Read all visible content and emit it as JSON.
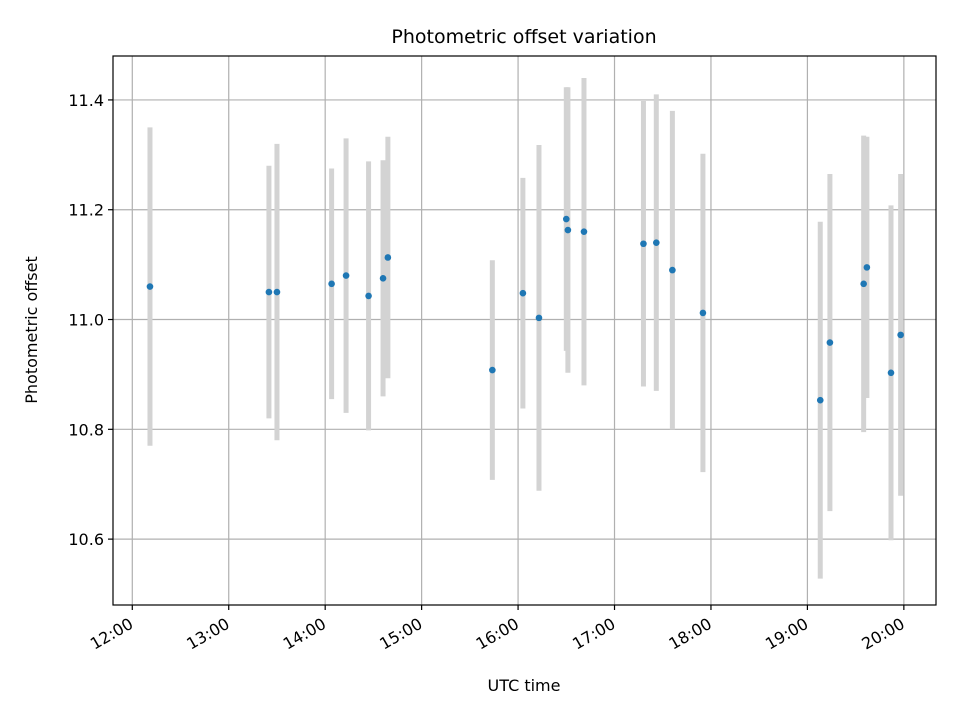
{
  "chart_data": {
    "type": "scatter",
    "title": "Photometric offset variation",
    "xlabel": "UTC time",
    "ylabel": "Photometric offset",
    "x_tick_labels": [
      "12:00",
      "13:00",
      "14:00",
      "15:00",
      "16:00",
      "17:00",
      "18:00",
      "19:00",
      "20:00"
    ],
    "y_tick_labels": [
      "10.6",
      "10.8",
      "11.0",
      "11.2",
      "11.4"
    ],
    "y_ticks": [
      10.6,
      10.8,
      11.0,
      11.2,
      11.4
    ],
    "xlim": [
      "11:48",
      "20:20"
    ],
    "ylim": [
      10.48,
      11.48
    ],
    "grid": true,
    "colors": {
      "point": "#1f77b4",
      "errorbar": "#d3d3d3",
      "grid": "#b0b0b0"
    },
    "points": [
      {
        "x": "12:11",
        "y": 11.06,
        "err": 0.29
      },
      {
        "x": "13:25",
        "y": 11.05,
        "err": 0.23
      },
      {
        "x": "13:30",
        "y": 11.05,
        "err": 0.27
      },
      {
        "x": "14:04",
        "y": 11.065,
        "err": 0.21
      },
      {
        "x": "14:13",
        "y": 11.08,
        "err": 0.25
      },
      {
        "x": "14:27",
        "y": 11.043,
        "err": 0.245
      },
      {
        "x": "14:36",
        "y": 11.075,
        "err": 0.215
      },
      {
        "x": "14:39",
        "y": 11.113,
        "err": 0.22
      },
      {
        "x": "15:44",
        "y": 10.908,
        "err": 0.2
      },
      {
        "x": "16:03",
        "y": 11.048,
        "err": 0.21
      },
      {
        "x": "16:13",
        "y": 11.003,
        "err": 0.315
      },
      {
        "x": "16:30",
        "y": 11.183,
        "err": 0.24
      },
      {
        "x": "16:31",
        "y": 11.163,
        "err": 0.26
      },
      {
        "x": "16:41",
        "y": 11.16,
        "err": 0.28
      },
      {
        "x": "17:18",
        "y": 11.138,
        "err": 0.26
      },
      {
        "x": "17:26",
        "y": 11.14,
        "err": 0.27
      },
      {
        "x": "17:36",
        "y": 11.09,
        "err": 0.29
      },
      {
        "x": "17:55",
        "y": 11.012,
        "err": 0.29
      },
      {
        "x": "19:08",
        "y": 10.853,
        "err": 0.325
      },
      {
        "x": "19:14",
        "y": 10.958,
        "err": 0.307
      },
      {
        "x": "19:35",
        "y": 11.065,
        "err": 0.27
      },
      {
        "x": "19:37",
        "y": 11.095,
        "err": 0.238
      },
      {
        "x": "19:52",
        "y": 10.903,
        "err": 0.305
      },
      {
        "x": "19:58",
        "y": 10.972,
        "err": 0.293
      }
    ]
  }
}
